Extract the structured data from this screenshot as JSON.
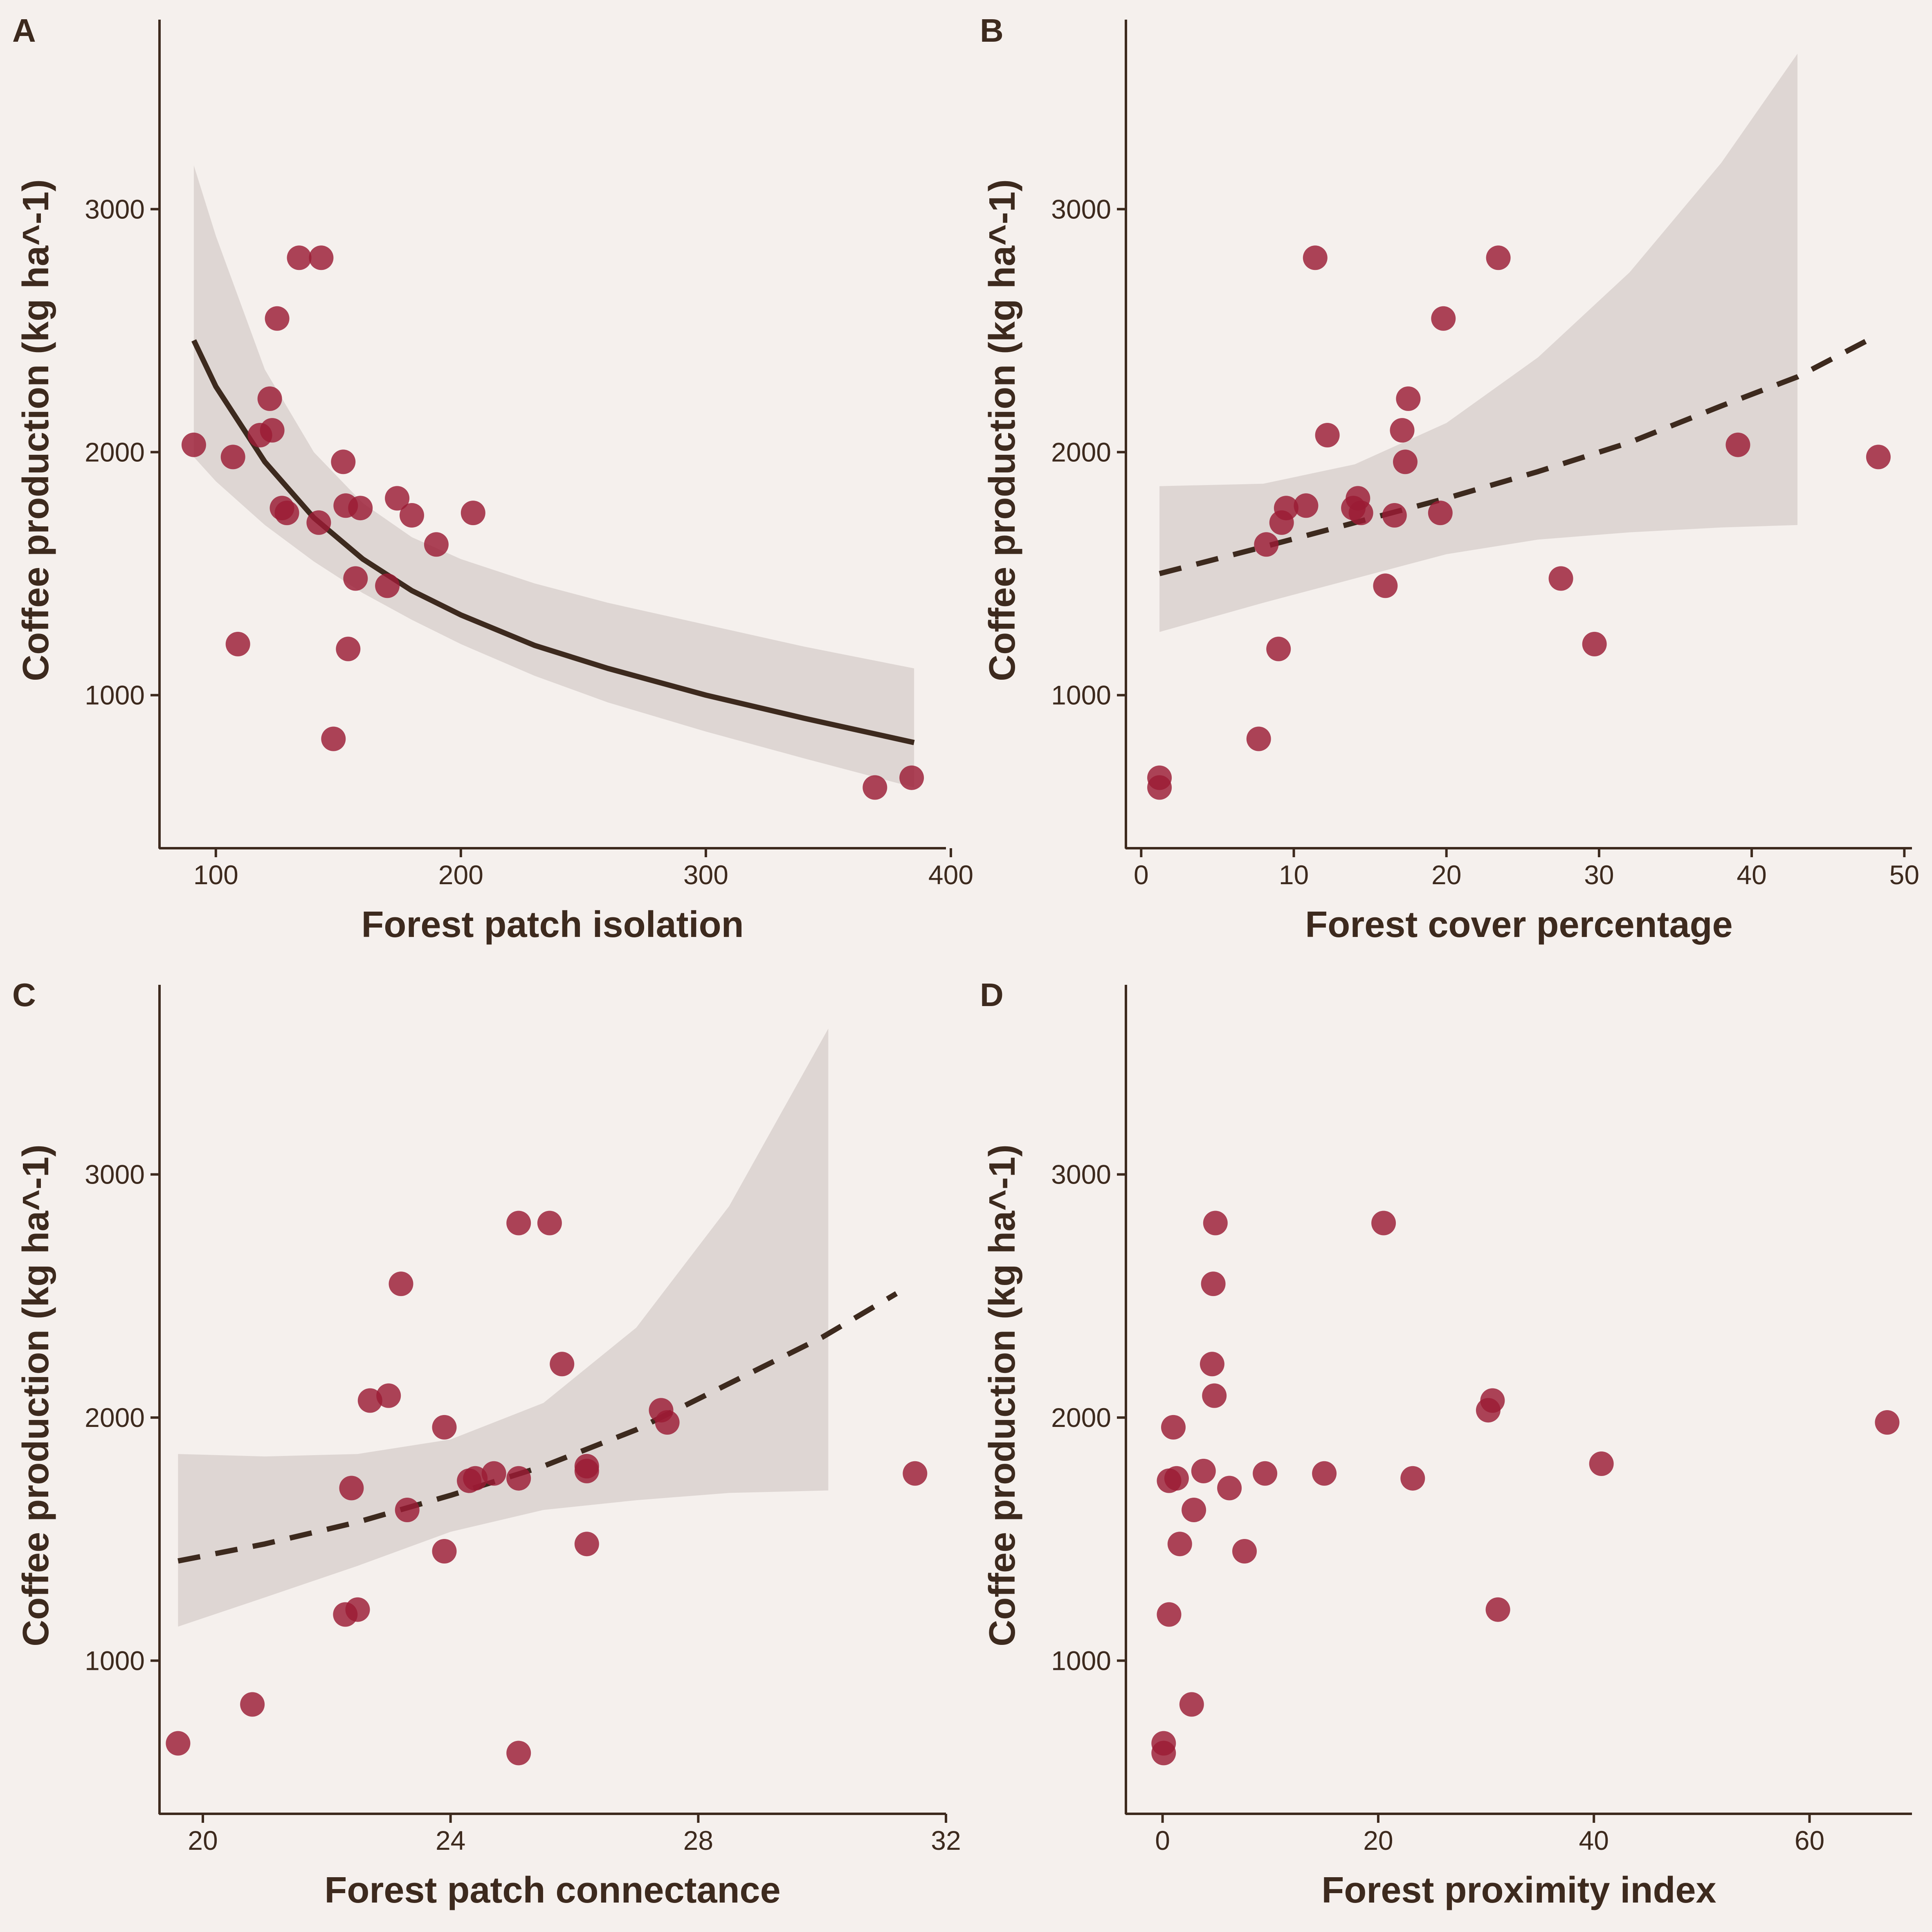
{
  "colors": {
    "background": "#f5f0ed",
    "axis": "#3d2a1e",
    "points": "#9b1b35",
    "band": "#ded6d3",
    "line": "#3d2a1e"
  },
  "chart_data": [
    {
      "type": "scatter",
      "panel": "A",
      "xlabel": "Forest patch isolation",
      "ylabel": "Coffee production (kg ha^-1)",
      "xlim": [
        77,
        398
      ],
      "ylim": [
        370,
        3780
      ],
      "xticks": [
        100,
        200,
        300,
        400
      ],
      "xtick_labels": [
        "100",
        "200",
        "300",
        "400"
      ],
      "yticks": [
        1000,
        2000,
        3000
      ],
      "ytick_labels": [
        "1000",
        "2000",
        "3000"
      ],
      "fit": {
        "style": "solid",
        "x": [
          91,
          100,
          120,
          140,
          160,
          180,
          200,
          230,
          260,
          300,
          340,
          385
        ],
        "y": [
          2460,
          2270,
          1960,
          1730,
          1560,
          1430,
          1330,
          1205,
          1110,
          1000,
          905,
          805
        ]
      },
      "band": {
        "x": [
          91,
          100,
          120,
          140,
          160,
          180,
          200,
          230,
          260,
          300,
          340,
          385
        ],
        "lower": [
          1980,
          1880,
          1700,
          1550,
          1420,
          1310,
          1210,
          1080,
          970,
          850,
          740,
          620
        ],
        "upper": [
          3180,
          2890,
          2340,
          2000,
          1790,
          1650,
          1560,
          1460,
          1380,
          1290,
          1200,
          1110
        ]
      },
      "points": {
        "x": [
          91,
          107,
          109,
          118,
          122,
          123,
          125,
          127,
          129,
          134,
          142,
          143,
          148,
          152,
          153,
          154,
          157,
          159,
          170,
          174,
          180,
          190,
          205,
          369,
          384
        ],
        "y": [
          2030,
          1980,
          1210,
          2070,
          2220,
          2090,
          2550,
          1770,
          1750,
          2800,
          1710,
          2800,
          820,
          1960,
          1780,
          1190,
          1480,
          1770,
          1450,
          1810,
          1740,
          1620,
          1750,
          620,
          660
        ]
      }
    },
    {
      "type": "scatter",
      "panel": "B",
      "xlabel": "Forest cover percentage",
      "ylabel": "Coffee production (kg ha^-1)",
      "xlim": [
        -1.0,
        50.5
      ],
      "ylim": [
        370,
        3780
      ],
      "xticks": [
        0,
        10,
        20,
        30,
        40,
        50
      ],
      "xtick_labels": [
        "0",
        "10",
        "20",
        "30",
        "40",
        "50"
      ],
      "yticks": [
        1000,
        2000,
        3000
      ],
      "ytick_labels": [
        "1000",
        "2000",
        "3000"
      ],
      "fit": {
        "style": "dashed",
        "x": [
          1.2,
          8,
          14,
          20,
          26,
          32,
          38,
          43,
          48.2
        ],
        "y": [
          1500,
          1610,
          1710,
          1810,
          1920,
          2040,
          2190,
          2310,
          2480
        ]
      },
      "band": {
        "x": [
          1.2,
          8,
          14,
          20,
          26,
          32,
          38,
          43
        ],
        "lower": [
          1260,
          1380,
          1480,
          1580,
          1640,
          1670,
          1690,
          1700
        ],
        "upper": [
          1860,
          1870,
          1950,
          2120,
          2390,
          2740,
          3190,
          3640
        ]
      },
      "points": {
        "x": [
          1.2,
          1.2,
          7.7,
          8.2,
          9.0,
          9.2,
          9.5,
          10.8,
          11.4,
          12.2,
          13.9,
          14.2,
          14.4,
          16.0,
          16.6,
          17.1,
          17.3,
          17.5,
          19.6,
          19.8,
          23.4,
          27.5,
          29.7,
          39.1,
          48.3
        ],
        "y": [
          660,
          620,
          820,
          1620,
          1190,
          1710,
          1770,
          1780,
          2800,
          2070,
          1770,
          1810,
          1750,
          1450,
          1740,
          2090,
          1960,
          2220,
          1750,
          2550,
          2800,
          1480,
          1210,
          2030,
          1980
        ]
      }
    },
    {
      "type": "scatter",
      "panel": "C",
      "xlabel": "Forest patch connectance",
      "ylabel": "Coffee production (kg ha^-1)",
      "xlim": [
        19.3,
        32.0
      ],
      "ylim": [
        370,
        3780
      ],
      "xticks": [
        20,
        24,
        28,
        32
      ],
      "xtick_labels": [
        "20",
        "24",
        "28",
        "32"
      ],
      "yticks": [
        1000,
        2000,
        3000
      ],
      "ytick_labels": [
        "1000",
        "2000",
        "3000"
      ],
      "fit": {
        "style": "dashed",
        "x": [
          19.6,
          21,
          22.5,
          24,
          25.5,
          27,
          28.5,
          30,
          31.2
        ],
        "y": [
          1410,
          1480,
          1570,
          1680,
          1800,
          1950,
          2140,
          2330,
          2510
        ]
      },
      "band": {
        "x": [
          19.6,
          21,
          22.5,
          24,
          25.5,
          27,
          28.5,
          30.1
        ],
        "lower": [
          1140,
          1260,
          1390,
          1530,
          1620,
          1660,
          1690,
          1700
        ],
        "upper": [
          1850,
          1840,
          1850,
          1910,
          2060,
          2370,
          2870,
          3600
        ]
      },
      "points": {
        "x": [
          19.6,
          20.8,
          22.3,
          22.4,
          22.5,
          22.7,
          23.0,
          23.2,
          23.3,
          23.9,
          23.9,
          24.3,
          24.4,
          24.7,
          25.1,
          25.1,
          25.1,
          25.6,
          25.8,
          26.2,
          26.2,
          26.2,
          27.4,
          27.5,
          31.5
        ],
        "y": [
          660,
          820,
          1190,
          1710,
          1210,
          2070,
          2090,
          2550,
          1620,
          1960,
          1450,
          1740,
          1750,
          1770,
          2800,
          1750,
          620,
          2800,
          2220,
          1800,
          1780,
          1480,
          2030,
          1980,
          1770
        ]
      }
    },
    {
      "type": "scatter",
      "panel": "D",
      "xlabel": "Forest proximity index",
      "ylabel": "Coffee production (kg ha^-1)",
      "xlim": [
        -3.4,
        69.5
      ],
      "ylim": [
        370,
        3780
      ],
      "xticks": [
        0,
        20,
        40,
        60
      ],
      "xtick_labels": [
        "0",
        "20",
        "40",
        "60"
      ],
      "yticks": [
        1000,
        2000,
        3000
      ],
      "ytick_labels": [
        "1000",
        "2000",
        "3000"
      ],
      "points": {
        "x": [
          0.1,
          0.1,
          0.6,
          0.6,
          1.0,
          1.3,
          1.6,
          2.7,
          2.9,
          3.8,
          4.6,
          4.7,
          4.8,
          4.9,
          6.2,
          7.6,
          9.5,
          15.0,
          20.5,
          23.2,
          30.2,
          30.6,
          31.1,
          40.7,
          67.2
        ],
        "y": [
          660,
          620,
          1190,
          1740,
          1960,
          1750,
          1480,
          820,
          1620,
          1780,
          2220,
          2550,
          2090,
          2800,
          1710,
          1450,
          1770,
          1770,
          2800,
          1750,
          2030,
          2070,
          1210,
          1810,
          1980
        ]
      }
    }
  ]
}
